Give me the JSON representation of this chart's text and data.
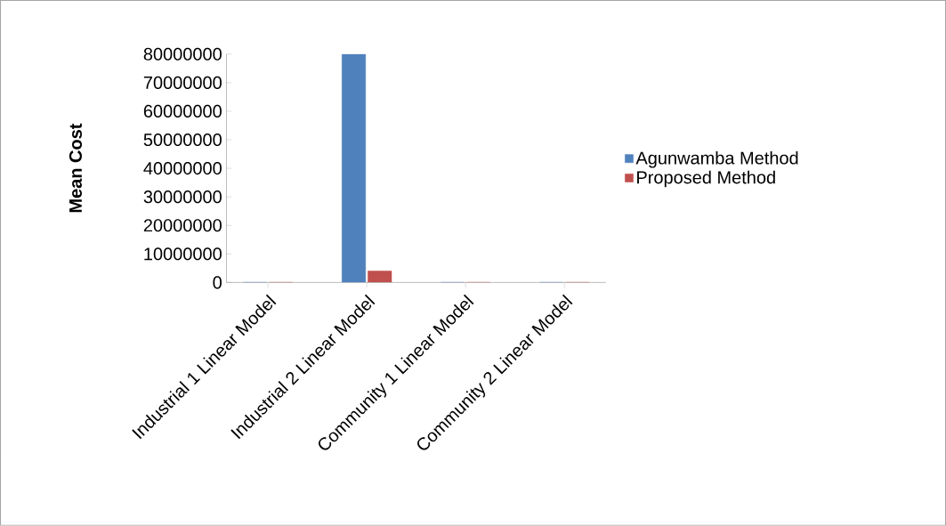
{
  "chart_data": {
    "type": "bar",
    "ylabel": "Mean Cost",
    "categories": [
      "Industrial 1 Linear Model",
      "Industrial 2 Linear Model",
      "Community 1 Linear Model",
      "Community 2 Linear Model"
    ],
    "series": [
      {
        "name": "Agunwamba Method",
        "color": "#4f81bd",
        "values": [
          0,
          80000000,
          0,
          0
        ]
      },
      {
        "name": "Proposed Method",
        "color": "#c0504d",
        "values": [
          0,
          4000000,
          0,
          0
        ]
      }
    ],
    "ylim": [
      0,
      80000000
    ],
    "yticks": [
      0,
      10000000,
      20000000,
      30000000,
      40000000,
      50000000,
      60000000,
      70000000,
      80000000
    ],
    "grid": false,
    "legend": "right"
  }
}
